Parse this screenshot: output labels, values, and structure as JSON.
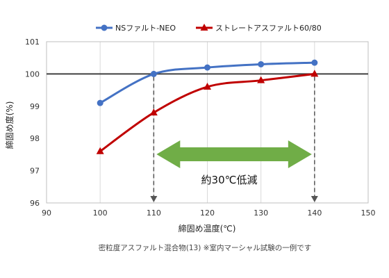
{
  "chart_data": {
    "type": "line",
    "xlabel": "締固め温度(℃)",
    "ylabel": "締固め度(%)",
    "xlim": [
      90,
      150
    ],
    "ylim": [
      96,
      101
    ],
    "x_ticks": [
      "90",
      "100",
      "110",
      "120",
      "130",
      "140",
      "150"
    ],
    "y_ticks": [
      "96",
      "97",
      "98",
      "99",
      "100",
      "101"
    ],
    "grid": "vertical",
    "legend_position": "top",
    "reference_line": 100,
    "series": [
      {
        "name": "NSファルト-NEO",
        "color": "#4472C4",
        "marker": "circle",
        "x": [
          100,
          110,
          120,
          130,
          140
        ],
        "y": [
          99.1,
          100.0,
          100.2,
          100.3,
          100.35
        ]
      },
      {
        "name": "ストレートアスファルト60/80",
        "color": "#C00000",
        "marker": "triangle",
        "x": [
          100,
          110,
          120,
          130,
          140
        ],
        "y": [
          97.6,
          98.8,
          99.6,
          99.8,
          100.0
        ]
      }
    ],
    "annotation": {
      "text": "約30℃低減",
      "from_x": 110,
      "to_x": 140,
      "arrow_color": "#70AD47"
    },
    "dashed_guides_x": [
      110,
      140
    ],
    "note": "密粒度アスファルト混合物(13)   ※室内マーシャル試験の一例です"
  }
}
